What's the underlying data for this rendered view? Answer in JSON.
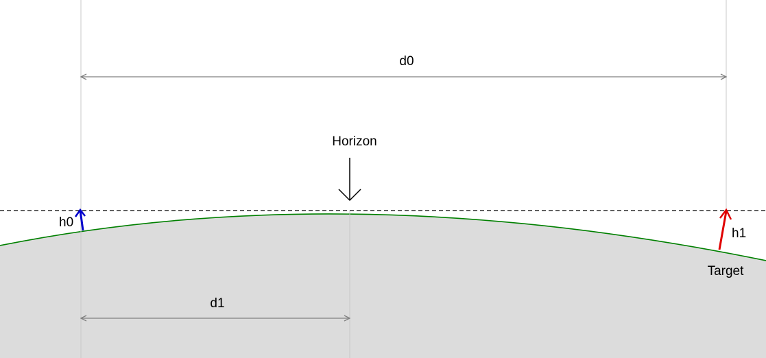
{
  "labels": {
    "d0": "d0",
    "d1": "d1",
    "h0": "h0",
    "h1": "h1",
    "horizon": "Horizon",
    "target": "Target"
  },
  "colors": {
    "background": "#ffffff",
    "ground_fill": "#dcdcdc",
    "ground_outline": "#008000",
    "guide_lines": "#c8c8c8",
    "dimension_arrows": "#808080",
    "horizon_line": "#000000",
    "h0_arrow": "#0000cc",
    "h1_arrow": "#e00000"
  },
  "icons": {
    "horizon_pointer": "down-arrow-icon",
    "h0_vector": "up-arrow-icon",
    "h1_vector": "up-arrow-icon"
  }
}
